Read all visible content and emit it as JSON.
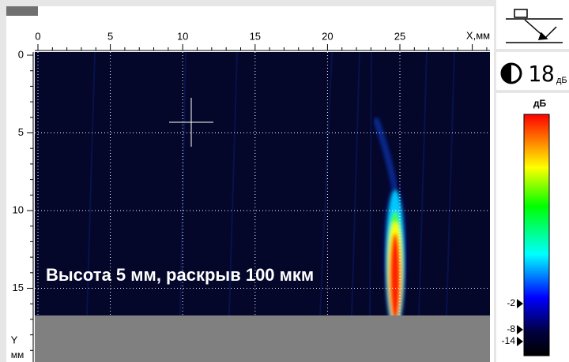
{
  "scan": {
    "x_axis": {
      "label": "X,мм",
      "ticks": [
        0,
        5,
        10,
        15,
        20,
        25
      ]
    },
    "y_axis": {
      "label": "Y",
      "unit": "мм",
      "ticks": [
        0,
        5,
        10,
        15
      ]
    },
    "annotation": "Высота 5 мм, раскрыв 100 мкм"
  },
  "side_panel": {
    "gain": {
      "value": "18",
      "unit": "дБ"
    },
    "palette": {
      "title": "дБ",
      "markers": [
        "-2",
        "-8",
        "-14"
      ]
    }
  }
}
